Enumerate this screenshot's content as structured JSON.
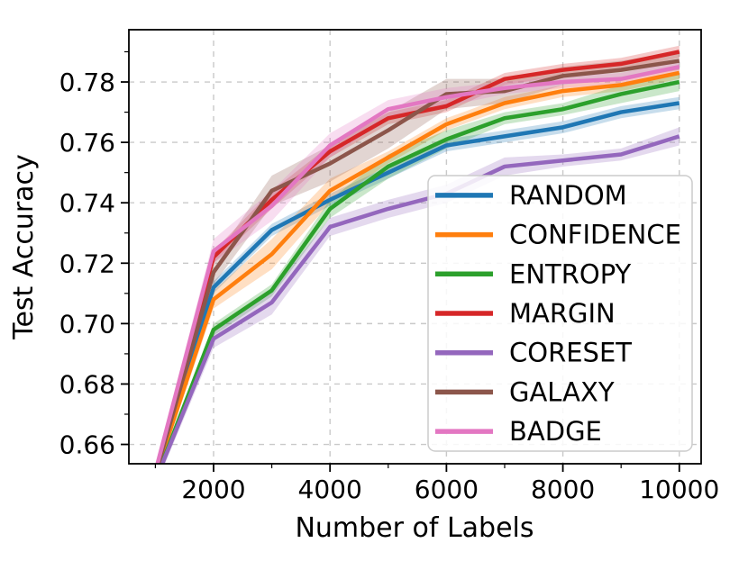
{
  "figure": {
    "xlabel": "Number of Labels",
    "ylabel": "Test Accuracy"
  },
  "axes": {
    "x": {
      "ticks": [
        2000,
        4000,
        6000,
        8000,
        10000
      ],
      "tick_labels": [
        "2000",
        "4000",
        "6000",
        "8000",
        "10000"
      ],
      "minor_step": 1000,
      "lim": [
        545,
        10375
      ]
    },
    "y": {
      "ticks": [
        0.66,
        0.68,
        0.7,
        0.72,
        0.74,
        0.76,
        0.78
      ],
      "tick_labels": [
        "0.66",
        "0.68",
        "0.70",
        "0.72",
        "0.74",
        "0.76",
        "0.78"
      ],
      "minor_step": 0.01,
      "lim": [
        0.6536,
        0.7973
      ]
    },
    "grid_color": "#c9c9c9",
    "spine_color": "#000000"
  },
  "chart_data": {
    "type": "line",
    "title": "",
    "xlabel": "Number of Labels",
    "ylabel": "Test Accuracy",
    "x": [
      1000,
      2000,
      3000,
      4000,
      5000,
      6000,
      7000,
      8000,
      9000,
      10000
    ],
    "xlim": [
      545,
      10375
    ],
    "ylim": [
      0.654,
      0.797
    ],
    "grid": "dashed",
    "legend_position": "lower-right-inside",
    "series": [
      {
        "name": "RANDOM",
        "color": "#1f77b4",
        "values": [
          0.65,
          0.712,
          0.731,
          0.741,
          0.75,
          0.759,
          0.762,
          0.765,
          0.77,
          0.773
        ],
        "band": [
          0.002,
          0.002,
          0.002,
          0.002,
          0.002,
          0.002,
          0.002,
          0.002,
          0.002,
          0.002
        ]
      },
      {
        "name": "CONFIDENCE",
        "color": "#ff7f0e",
        "values": [
          0.65,
          0.708,
          0.723,
          0.744,
          0.755,
          0.766,
          0.773,
          0.777,
          0.779,
          0.783
        ],
        "band": [
          0.002,
          0.003,
          0.005,
          0.004,
          0.002,
          0.002,
          0.002,
          0.002,
          0.002,
          0.002
        ]
      },
      {
        "name": "ENTROPY",
        "color": "#2ca02c",
        "values": [
          0.648,
          0.698,
          0.711,
          0.738,
          0.752,
          0.761,
          0.768,
          0.771,
          0.776,
          0.78
        ],
        "band": [
          0.002,
          0.002,
          0.002,
          0.003,
          0.004,
          0.003,
          0.002,
          0.002,
          0.003,
          0.003
        ]
      },
      {
        "name": "MARGIN",
        "color": "#d62728",
        "values": [
          0.65,
          0.722,
          0.741,
          0.757,
          0.768,
          0.772,
          0.781,
          0.784,
          0.786,
          0.79
        ],
        "band": [
          0.002,
          0.002,
          0.003,
          0.002,
          0.002,
          0.002,
          0.002,
          0.002,
          0.002,
          0.002
        ]
      },
      {
        "name": "CORESET",
        "color": "#9467bd",
        "values": [
          0.648,
          0.695,
          0.707,
          0.732,
          0.738,
          0.743,
          0.752,
          0.754,
          0.756,
          0.762
        ],
        "band": [
          0.002,
          0.003,
          0.004,
          0.003,
          0.003,
          0.003,
          0.003,
          0.002,
          0.002,
          0.003
        ]
      },
      {
        "name": "GALAXY",
        "color": "#8c564b",
        "values": [
          0.65,
          0.717,
          0.744,
          0.753,
          0.764,
          0.776,
          0.777,
          0.782,
          0.784,
          0.787
        ],
        "band": [
          0.002,
          0.004,
          0.005,
          0.006,
          0.006,
          0.005,
          0.004,
          0.003,
          0.003,
          0.003
        ]
      },
      {
        "name": "BADGE",
        "color": "#e377c2",
        "values": [
          0.651,
          0.724,
          0.739,
          0.759,
          0.771,
          0.775,
          0.778,
          0.78,
          0.781,
          0.785
        ],
        "band": [
          0.002,
          0.004,
          0.005,
          0.004,
          0.003,
          0.003,
          0.002,
          0.002,
          0.002,
          0.002
        ]
      }
    ]
  },
  "legend": {
    "items": [
      "RANDOM",
      "CONFIDENCE",
      "ENTROPY",
      "MARGIN",
      "CORESET",
      "GALAXY",
      "BADGE"
    ]
  }
}
